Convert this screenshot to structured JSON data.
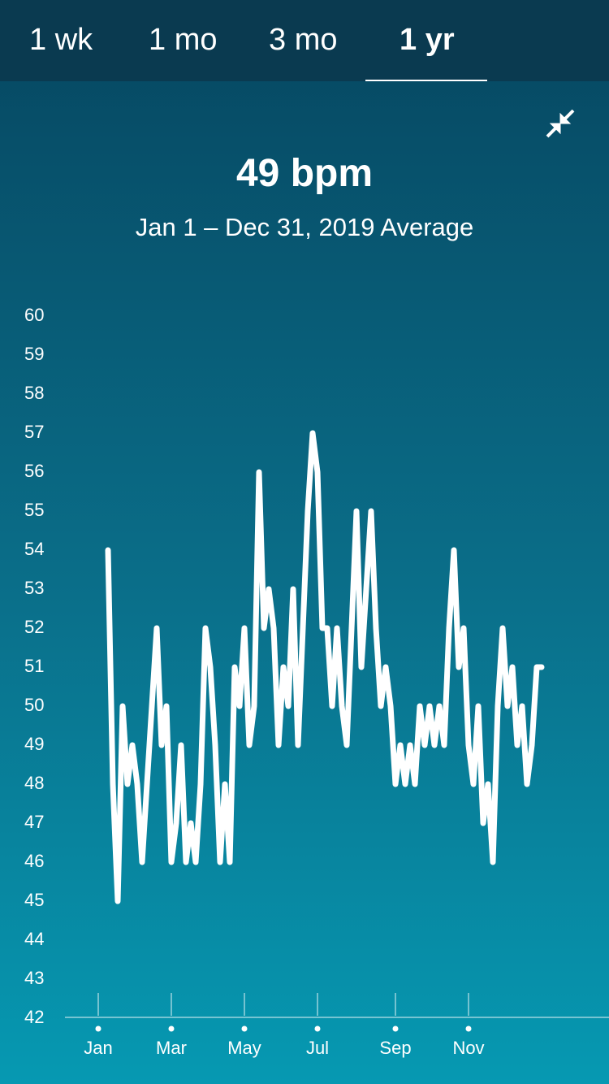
{
  "tabs": [
    "1 wk",
    "1 mo",
    "3 mo",
    "1 yr"
  ],
  "summary": {
    "value": "49 bpm",
    "caption": "Jan 1 – Dec 31, 2019 Average"
  },
  "chart_data": {
    "type": "line",
    "color": "#ffffff",
    "categories": [
      "Jan",
      null,
      null,
      null,
      null,
      null,
      null,
      null,
      null,
      null,
      null,
      null,
      null,
      null,
      null,
      "Mar",
      null,
      null,
      null,
      null,
      null,
      null,
      null,
      null,
      null,
      null,
      null,
      null,
      null,
      null,
      "May",
      null,
      null,
      null,
      null,
      null,
      null,
      null,
      null,
      null,
      null,
      null,
      null,
      null,
      null,
      "Jul",
      null,
      null,
      null,
      null,
      null,
      null,
      null,
      null,
      null,
      null,
      null,
      null,
      null,
      null,
      null,
      "Sep",
      null,
      null,
      null,
      null,
      null,
      null,
      null,
      null,
      null,
      null,
      null,
      null,
      null,
      null,
      "Nov",
      null,
      null,
      null,
      null,
      null,
      null,
      null,
      null,
      null,
      null,
      null,
      null,
      null,
      null,
      null
    ],
    "values": [
      null,
      null,
      54,
      48,
      45,
      50,
      48,
      49,
      48,
      46,
      48,
      50,
      52,
      49,
      50,
      46,
      47,
      49,
      46,
      47,
      46,
      48,
      52,
      51,
      49,
      46,
      48,
      46,
      51,
      50,
      52,
      49,
      50,
      56,
      52,
      53,
      52,
      49,
      51,
      50,
      53,
      49,
      52,
      55,
      57,
      56,
      52,
      52,
      50,
      52,
      50,
      49,
      52,
      55,
      51,
      53,
      55,
      52,
      50,
      51,
      50,
      48,
      49,
      48,
      49,
      48,
      50,
      49,
      50,
      49,
      50,
      49,
      52,
      54,
      51,
      52,
      49,
      48,
      50,
      47,
      48,
      46,
      50,
      52,
      50,
      51,
      49,
      50,
      48,
      49,
      51,
      51
    ],
    "ylim": [
      42,
      60
    ],
    "yticks": [
      42,
      43,
      44,
      45,
      46,
      47,
      48,
      49,
      50,
      51,
      52,
      53,
      54,
      55,
      56,
      57,
      58,
      59,
      60
    ]
  }
}
